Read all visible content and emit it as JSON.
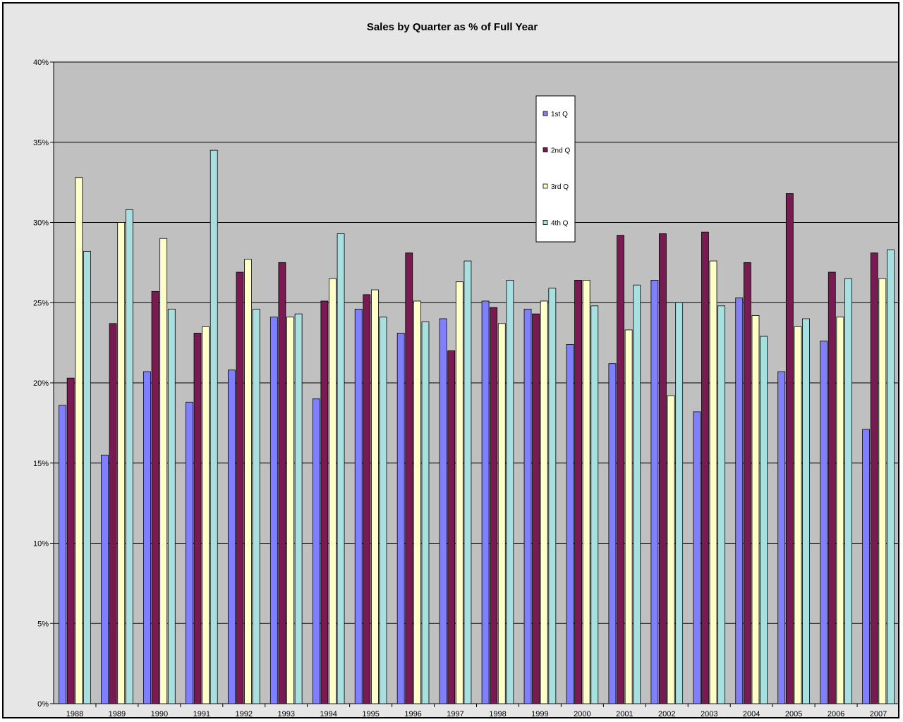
{
  "chart_data": {
    "type": "bar",
    "title": "Sales by Quarter as % of Full Year",
    "xlabel": "",
    "ylabel": "",
    "ylim": [
      0,
      40
    ],
    "y_ticks": [
      "0%",
      "5%",
      "10%",
      "15%",
      "20%",
      "25%",
      "30%",
      "35%",
      "40%"
    ],
    "grid": true,
    "legend_position": "top-center",
    "categories": [
      "1988",
      "1989",
      "1990",
      "1991",
      "1992",
      "1993",
      "1994",
      "1995",
      "1996",
      "1997",
      "1998",
      "1999",
      "2000",
      "2001",
      "2002",
      "2003",
      "2004",
      "2005",
      "2006",
      "2007"
    ],
    "series": [
      {
        "name": "1st Q",
        "color": "#8080ff",
        "values": [
          18.6,
          15.5,
          20.7,
          18.8,
          20.8,
          24.1,
          19.0,
          24.6,
          23.1,
          24.0,
          25.1,
          24.6,
          22.4,
          21.2,
          26.4,
          18.2,
          25.3,
          20.7,
          22.6,
          17.1
        ]
      },
      {
        "name": "2nd Q",
        "color": "#7a1a52",
        "values": [
          20.3,
          23.7,
          25.7,
          23.1,
          26.9,
          27.5,
          25.1,
          25.5,
          28.1,
          22.0,
          24.7,
          24.3,
          26.4,
          29.2,
          29.3,
          29.4,
          27.5,
          31.8,
          26.9,
          28.1
        ]
      },
      {
        "name": "3rd Q",
        "color": "#ffffc8",
        "values": [
          32.8,
          30.0,
          29.0,
          23.5,
          27.7,
          24.1,
          26.5,
          25.8,
          25.1,
          26.3,
          23.7,
          25.1,
          26.4,
          23.3,
          19.2,
          27.6,
          24.2,
          23.5,
          24.1,
          26.5
        ]
      },
      {
        "name": "4th Q",
        "color": "#a8e0e0",
        "values": [
          28.2,
          30.8,
          24.6,
          34.5,
          24.6,
          24.3,
          29.3,
          24.1,
          23.8,
          27.6,
          26.4,
          25.9,
          24.8,
          26.1,
          25.0,
          24.8,
          22.9,
          24.0,
          26.5,
          28.3
        ]
      }
    ]
  }
}
